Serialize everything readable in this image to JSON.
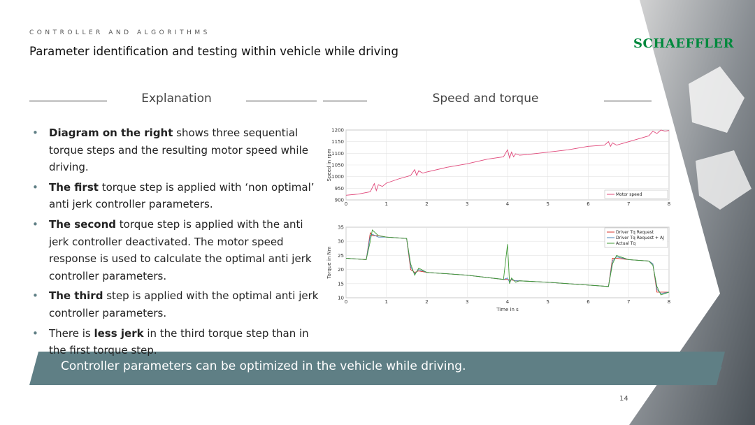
{
  "header": {
    "kicker": "CONTROLLER AND ALGORITHMS",
    "title": "Parameter identification and testing within vehicle while driving",
    "logo": "SCHAEFFLER"
  },
  "left": {
    "heading": "Explanation",
    "bullets": [
      [
        {
          "text": "Diagram on the right",
          "bold": true
        },
        {
          "text": " shows three sequential torque steps and the resulting motor speed while driving.",
          "bold": false
        }
      ],
      [
        {
          "text": "The first",
          "bold": true
        },
        {
          "text": " torque step is applied with ‘non optimal’ anti jerk controller parameters.",
          "bold": false
        }
      ],
      [
        {
          "text": "The second",
          "bold": true
        },
        {
          "text": " torque step is applied with the anti jerk controller deactivated. The motor speed response is used to calculate the optimal anti jerk controller parameters.",
          "bold": false
        }
      ],
      [
        {
          "text": "The third",
          "bold": true
        },
        {
          "text": " step is applied with the optimal anti jerk controller parameters.",
          "bold": false
        }
      ],
      [
        {
          "text": "There is ",
          "bold": false
        },
        {
          "text": "less jerk",
          "bold": true
        },
        {
          "text": " in the third torque step than in the first torque step.",
          "bold": false
        }
      ]
    ]
  },
  "right": {
    "heading": "Speed and torque"
  },
  "banner": "Controller parameters can be optimized in the vehicle while driving.",
  "page_number": "14",
  "chart_data": [
    {
      "type": "line",
      "ylabel": "Speed in rpm",
      "xlim": [
        0,
        8
      ],
      "ylim": [
        900,
        1200
      ],
      "xticks": [
        0,
        1,
        2,
        3,
        4,
        5,
        6,
        7,
        8
      ],
      "yticks": [
        900,
        950,
        1000,
        1050,
        1100,
        1150,
        1200
      ],
      "grid": true,
      "legend": "bottom-right",
      "x": [
        0,
        0.3,
        0.6,
        0.7,
        0.75,
        0.8,
        0.9,
        1.0,
        1.3,
        1.6,
        1.7,
        1.75,
        1.8,
        1.9,
        2.0,
        2.5,
        3.0,
        3.5,
        3.9,
        4.0,
        4.05,
        4.1,
        4.15,
        4.2,
        4.3,
        4.5,
        5.0,
        5.5,
        6.0,
        6.4,
        6.5,
        6.55,
        6.6,
        6.7,
        6.8,
        7.0,
        7.3,
        7.5,
        7.6,
        7.7,
        7.8,
        7.9,
        8.0
      ],
      "series": [
        {
          "name": "Motor speed",
          "color": "#e0487a",
          "values": [
            920,
            925,
            935,
            970,
            940,
            965,
            958,
            972,
            990,
            1005,
            1030,
            1005,
            1025,
            1015,
            1020,
            1040,
            1055,
            1075,
            1085,
            1115,
            1080,
            1105,
            1085,
            1098,
            1092,
            1095,
            1105,
            1115,
            1130,
            1135,
            1150,
            1130,
            1145,
            1135,
            1140,
            1150,
            1165,
            1175,
            1195,
            1185,
            1200,
            1195,
            1198
          ]
        }
      ]
    },
    {
      "type": "line",
      "ylabel": "Torque in Nm",
      "xlabel": "Time in s",
      "xlim": [
        0,
        8
      ],
      "ylim": [
        10,
        35
      ],
      "xticks": [
        0,
        1,
        2,
        3,
        4,
        5,
        6,
        7,
        8
      ],
      "yticks": [
        10,
        15,
        20,
        25,
        30,
        35
      ],
      "grid": true,
      "legend": "top-right",
      "x": [
        0,
        0.5,
        0.6,
        0.65,
        0.8,
        1.0,
        1.5,
        1.6,
        1.7,
        1.8,
        2.0,
        3.0,
        3.9,
        4.0,
        4.05,
        4.1,
        4.2,
        4.3,
        5.0,
        6.0,
        6.5,
        6.6,
        6.7,
        7.0,
        7.5,
        7.6,
        7.7,
        7.8,
        8.0
      ],
      "series": [
        {
          "name": "Driver Tq Request",
          "color": "#d9342b",
          "values": [
            24,
            23.5,
            33,
            32,
            32,
            31.5,
            31,
            20,
            19,
            19.5,
            19,
            18,
            16.5,
            16.5,
            16.3,
            16.3,
            16,
            16,
            15.5,
            14.5,
            14,
            24,
            24,
            23.5,
            23,
            22,
            12,
            12,
            12
          ]
        },
        {
          "name": "Driver Tq Request + AJ",
          "color": "#4a86b8",
          "values": [
            24,
            23.5,
            32,
            32.5,
            31.5,
            31.5,
            31,
            21,
            18.5,
            20,
            19,
            18,
            16.5,
            17,
            15.5,
            16.5,
            16,
            16,
            15.5,
            14.5,
            14,
            23,
            24.5,
            23.5,
            23,
            22,
            13,
            11.5,
            12
          ]
        },
        {
          "name": "Actual Tq",
          "color": "#3f9a35",
          "values": [
            24,
            23.5,
            30,
            34,
            32,
            31.5,
            31,
            22,
            18,
            20.5,
            19,
            18,
            16.5,
            29,
            15,
            17,
            15.5,
            16,
            15.5,
            14.5,
            14,
            22,
            25,
            23.5,
            23,
            21.5,
            14,
            11,
            12
          ]
        }
      ]
    }
  ]
}
